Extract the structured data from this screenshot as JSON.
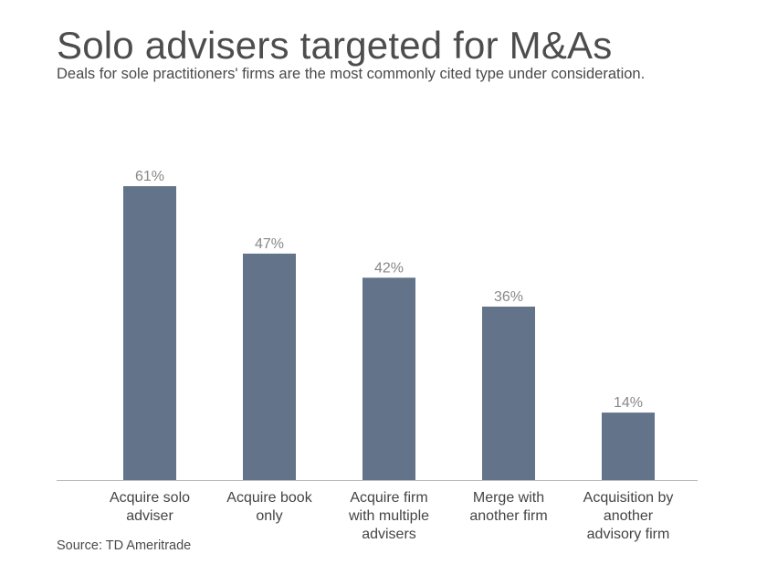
{
  "chart_data": {
    "type": "bar",
    "title": "Solo advisers targeted for M&As",
    "subtitle": "Deals for sole practitioners' firms are the most commonly cited type under consideration.",
    "source": "Source: TD Ameritrade",
    "categories": [
      [
        "Acquire solo",
        "adviser"
      ],
      [
        "Acquire book",
        "only"
      ],
      [
        "Acquire firm",
        "with multiple",
        "advisers"
      ],
      [
        "Merge with",
        "another firm"
      ],
      [
        "Acquisition by",
        "another",
        "advisory firm"
      ]
    ],
    "values": [
      61,
      47,
      42,
      36,
      14
    ],
    "value_labels": [
      "61%",
      "47%",
      "42%",
      "36%",
      "14%"
    ],
    "ylim": [
      0,
      65
    ],
    "grid": false,
    "bar_color": "#62738a",
    "label_color": "#888888",
    "axis_color": "#bbbbbb"
  }
}
